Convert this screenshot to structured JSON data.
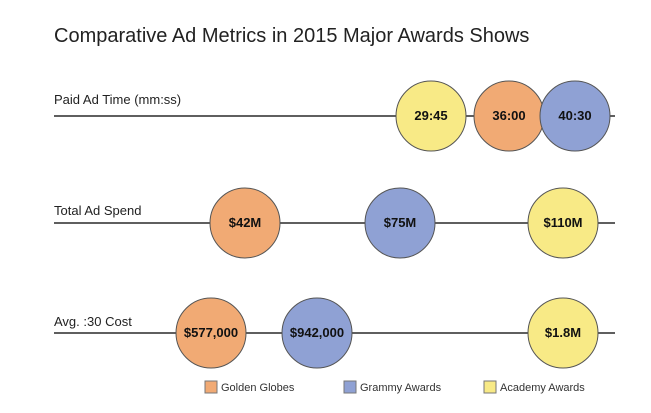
{
  "chart_data": {
    "type": "bubble-row",
    "title": "Comparative Ad Metrics in 2015 Major Awards Shows",
    "legend_position": "bottom",
    "series": [
      {
        "name": "Golden Globes",
        "color": "#f1aa74"
      },
      {
        "name": "Grammy Awards",
        "color": "#8fa1d4"
      },
      {
        "name": "Academy Awards",
        "color": "#f8ea86"
      }
    ],
    "rows": [
      {
        "label": "Paid Ad Time (mm:ss)",
        "unit": "minutes",
        "min": 0,
        "max": 40.5,
        "items": [
          {
            "series": "Golden Globes",
            "value": 36.0,
            "display": "36:00"
          },
          {
            "series": "Grammy Awards",
            "value": 40.5,
            "display": "40:30"
          },
          {
            "series": "Academy Awards",
            "value": 29.75,
            "display": "29:45"
          }
        ]
      },
      {
        "label": "Total Ad Spend",
        "unit": "USD millions",
        "min": 0,
        "max": 110,
        "items": [
          {
            "series": "Golden Globes",
            "value": 42,
            "display": "$42M"
          },
          {
            "series": "Grammy Awards",
            "value": 75,
            "display": "$75M"
          },
          {
            "series": "Academy Awards",
            "value": 110,
            "display": "$110M"
          }
        ]
      },
      {
        "label": "Avg. :30 Cost",
        "unit": "USD",
        "min": 0,
        "max": 1800000,
        "items": [
          {
            "series": "Golden Globes",
            "value": 577000,
            "display": "$577,000"
          },
          {
            "series": "Grammy Awards",
            "value": 942000,
            "display": "$942,000"
          },
          {
            "series": "Academy Awards",
            "value": 1800000,
            "display": "$1.8M"
          }
        ]
      }
    ]
  }
}
